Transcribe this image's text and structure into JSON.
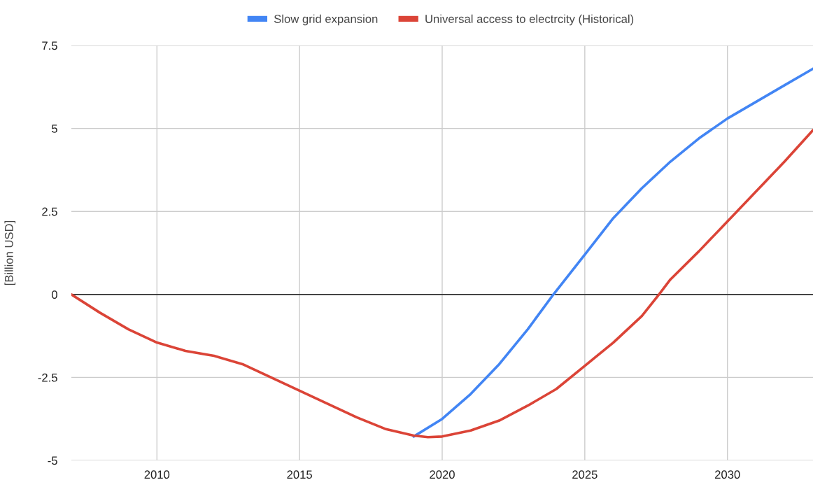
{
  "chart_data": {
    "type": "line",
    "ylabel": "[Billion USD]",
    "xlim": [
      2007,
      2033
    ],
    "xticks": [
      2010,
      2015,
      2020,
      2025,
      2030
    ],
    "ylim": [
      -5,
      7.5
    ],
    "yticks": [
      {
        "value": -5,
        "label": "-5"
      },
      {
        "value": -2.5,
        "label": "-2.5"
      },
      0,
      2.5,
      5,
      7.5
    ],
    "grid": true,
    "legend": "top",
    "ref_lines": [
      {
        "axis": "y",
        "value": 0,
        "color": "#333333"
      }
    ],
    "series": [
      {
        "name": "Slow grid expansion",
        "color": "#4285f4",
        "x": [
          2019,
          2020,
          2021,
          2022,
          2023,
          2023.9,
          2025,
          2026,
          2027,
          2028,
          2029,
          2030,
          2031,
          2032,
          2033
        ],
        "values": [
          -4.28,
          -3.75,
          -3.0,
          -2.1,
          -1.05,
          0,
          1.2,
          2.3,
          3.2,
          4.0,
          4.7,
          5.3,
          5.8,
          6.3,
          6.8
        ]
      },
      {
        "name": "Universal access to electrcity (Historical)",
        "color": "#db4437",
        "x": [
          2007,
          2008,
          2009,
          2010,
          2011,
          2012,
          2013,
          2014,
          2015,
          2016,
          2017,
          2018,
          2019,
          2019.5,
          2020,
          2021,
          2022,
          2023,
          2024,
          2025,
          2026,
          2027,
          2027.6,
          2028,
          2029,
          2030,
          2031,
          2032,
          2033
        ],
        "values": [
          0,
          -0.55,
          -1.05,
          -1.45,
          -1.7,
          -1.85,
          -2.1,
          -2.5,
          -2.9,
          -3.3,
          -3.7,
          -4.05,
          -4.25,
          -4.3,
          -4.28,
          -4.1,
          -3.8,
          -3.35,
          -2.85,
          -2.15,
          -1.45,
          -0.65,
          0,
          0.45,
          1.3,
          2.2,
          3.1,
          4.0,
          4.95
        ]
      }
    ]
  }
}
